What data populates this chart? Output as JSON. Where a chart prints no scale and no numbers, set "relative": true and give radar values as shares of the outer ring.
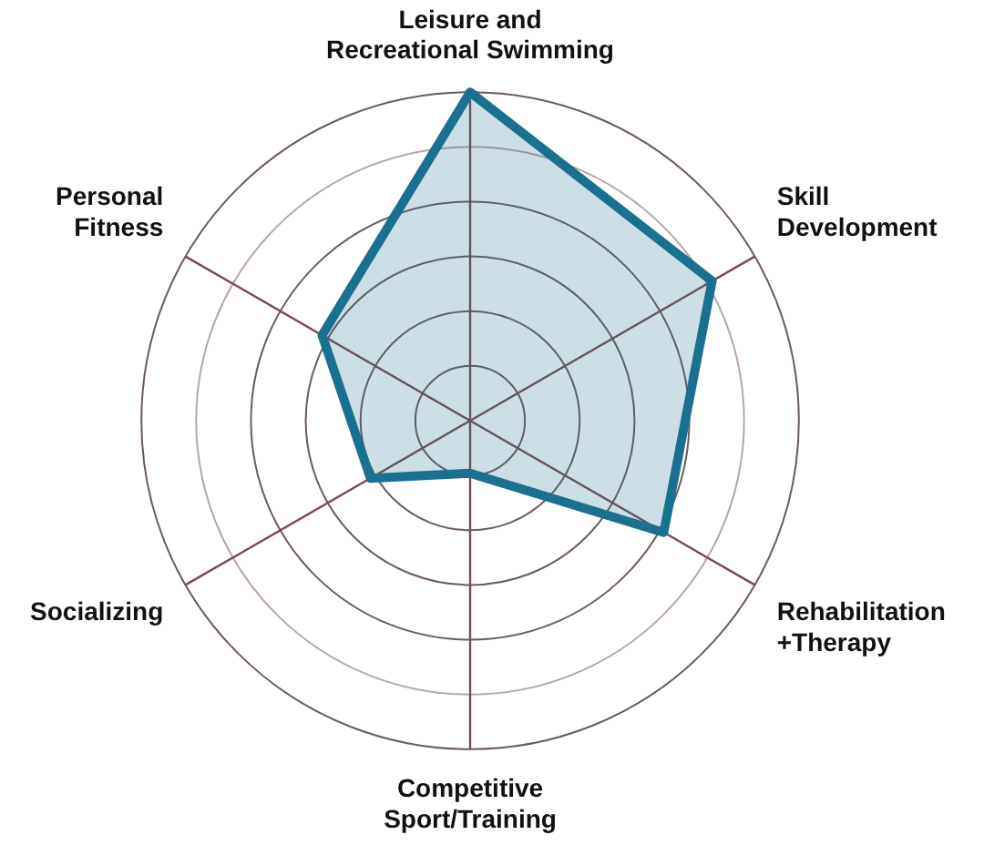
{
  "chart_data": {
    "type": "radar",
    "relative": true,
    "categories": [
      "Leisure and Recreational Swimming",
      "Skill Development",
      "Rehabilitation +Therapy",
      "Competitive Sport/Training",
      "Socializing",
      "Personal Fitness"
    ],
    "series": [
      {
        "color": "#1b6f8f",
        "values": [
          1.0,
          0.85,
          0.68,
          0.16,
          0.35,
          0.52
        ]
      }
    ],
    "grid": true,
    "legend": false,
    "marker": "none",
    "line_style": "solid"
  }
}
